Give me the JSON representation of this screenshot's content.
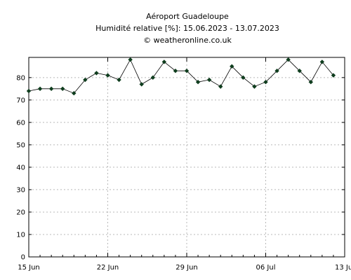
{
  "chart_data": {
    "type": "line",
    "title": "Aéroport Guadeloupe",
    "subtitle": "Humidité relative [%]: 15.06.2023 - 13.07.2023",
    "credit": "© weatheronline.co.uk",
    "xlabel": "",
    "ylabel": "",
    "ylim": [
      0,
      89
    ],
    "xlim": [
      "2023-06-15",
      "2023-07-13"
    ],
    "y_ticks": [
      0,
      10,
      20,
      30,
      40,
      50,
      60,
      70,
      80
    ],
    "x_ticks": [
      {
        "date": "2023-06-15",
        "label": "15 Jun"
      },
      {
        "date": "2023-06-22",
        "label": "22 Jun"
      },
      {
        "date": "2023-06-29",
        "label": "29 Jun"
      },
      {
        "date": "2023-07-06",
        "label": "06 Jul"
      },
      {
        "date": "2023-07-13",
        "label": "13 Jul"
      }
    ],
    "grid": true,
    "line_color": "#000000",
    "marker_color": "#0f3d1e",
    "series": [
      {
        "x": [
          "2023-06-15",
          "2023-06-16",
          "2023-06-17",
          "2023-06-18",
          "2023-06-19",
          "2023-06-20",
          "2023-06-21",
          "2023-06-22",
          "2023-06-23",
          "2023-06-24",
          "2023-06-25",
          "2023-06-26",
          "2023-06-27",
          "2023-06-28",
          "2023-06-29",
          "2023-06-30",
          "2023-07-01",
          "2023-07-02",
          "2023-07-03",
          "2023-07-04",
          "2023-07-05",
          "2023-07-06",
          "2023-07-07",
          "2023-07-08",
          "2023-07-09",
          "2023-07-10",
          "2023-07-11",
          "2023-07-12"
        ],
        "values": [
          74,
          75,
          75,
          75,
          73,
          79,
          82,
          81,
          79,
          88,
          77,
          80,
          87,
          83,
          83,
          78,
          79,
          76,
          85,
          80,
          76,
          78,
          83,
          88,
          83,
          78,
          87,
          81
        ]
      }
    ]
  }
}
